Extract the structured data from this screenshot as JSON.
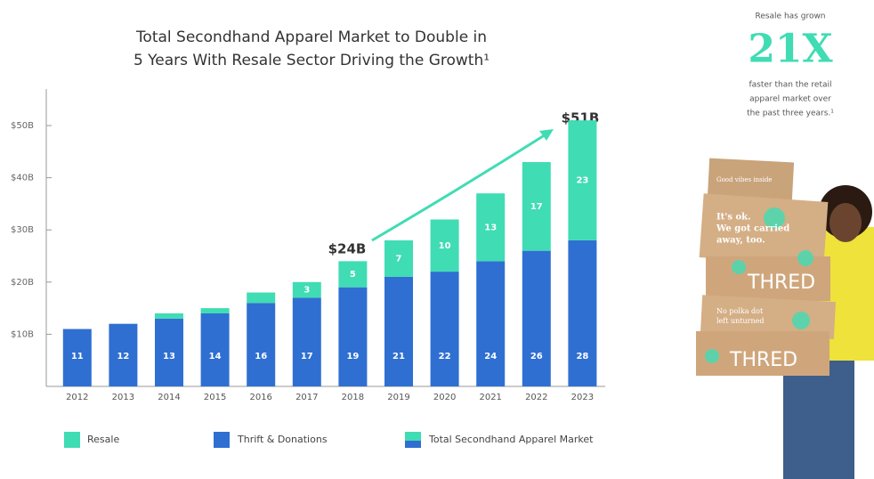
{
  "chart_data": {
    "type": "stacked-bar",
    "title": [
      "Total Secondhand Apparel Market to Double in",
      "5 Years With Resale Sector Driving the Growth¹"
    ],
    "categories": [
      "2012",
      "2013",
      "2014",
      "2015",
      "2016",
      "2017",
      "2018",
      "2019",
      "2020",
      "2021",
      "2022",
      "2023"
    ],
    "series": [
      {
        "name": "Thrift & Donations",
        "color": "#2f6fd2",
        "values": [
          11,
          12,
          13,
          14,
          16,
          17,
          19,
          21,
          22,
          24,
          26,
          28
        ]
      },
      {
        "name": "Resale",
        "color": "#40dcb4",
        "values": [
          0,
          0,
          1,
          1,
          2,
          3,
          5,
          7,
          10,
          13,
          17,
          23
        ]
      }
    ],
    "total_legend": "Total Secondhand Apparel Market",
    "ylim": [
      0,
      57
    ],
    "yticks": [
      {
        "value": 10,
        "label": "$10B"
      },
      {
        "value": 20,
        "label": "$20B"
      },
      {
        "value": 30,
        "label": "$30B"
      },
      {
        "value": 40,
        "label": "$40B"
      },
      {
        "value": 50,
        "label": "$50B"
      }
    ],
    "annotations": [
      "$24B",
      "$51B"
    ]
  },
  "side_note": {
    "lead": "Resale has grown",
    "figure": "21X",
    "lines": [
      "faster than the retail",
      "apparel market over",
      "the past three years.¹"
    ]
  },
  "photo_texts": {
    "box1": "Good vibes inside",
    "box2": [
      "It's ok.",
      "We got carried",
      "away, too."
    ],
    "box3": "THRED",
    "box4": [
      "No polka dot",
      "left unturned"
    ],
    "box5": "THRED"
  }
}
